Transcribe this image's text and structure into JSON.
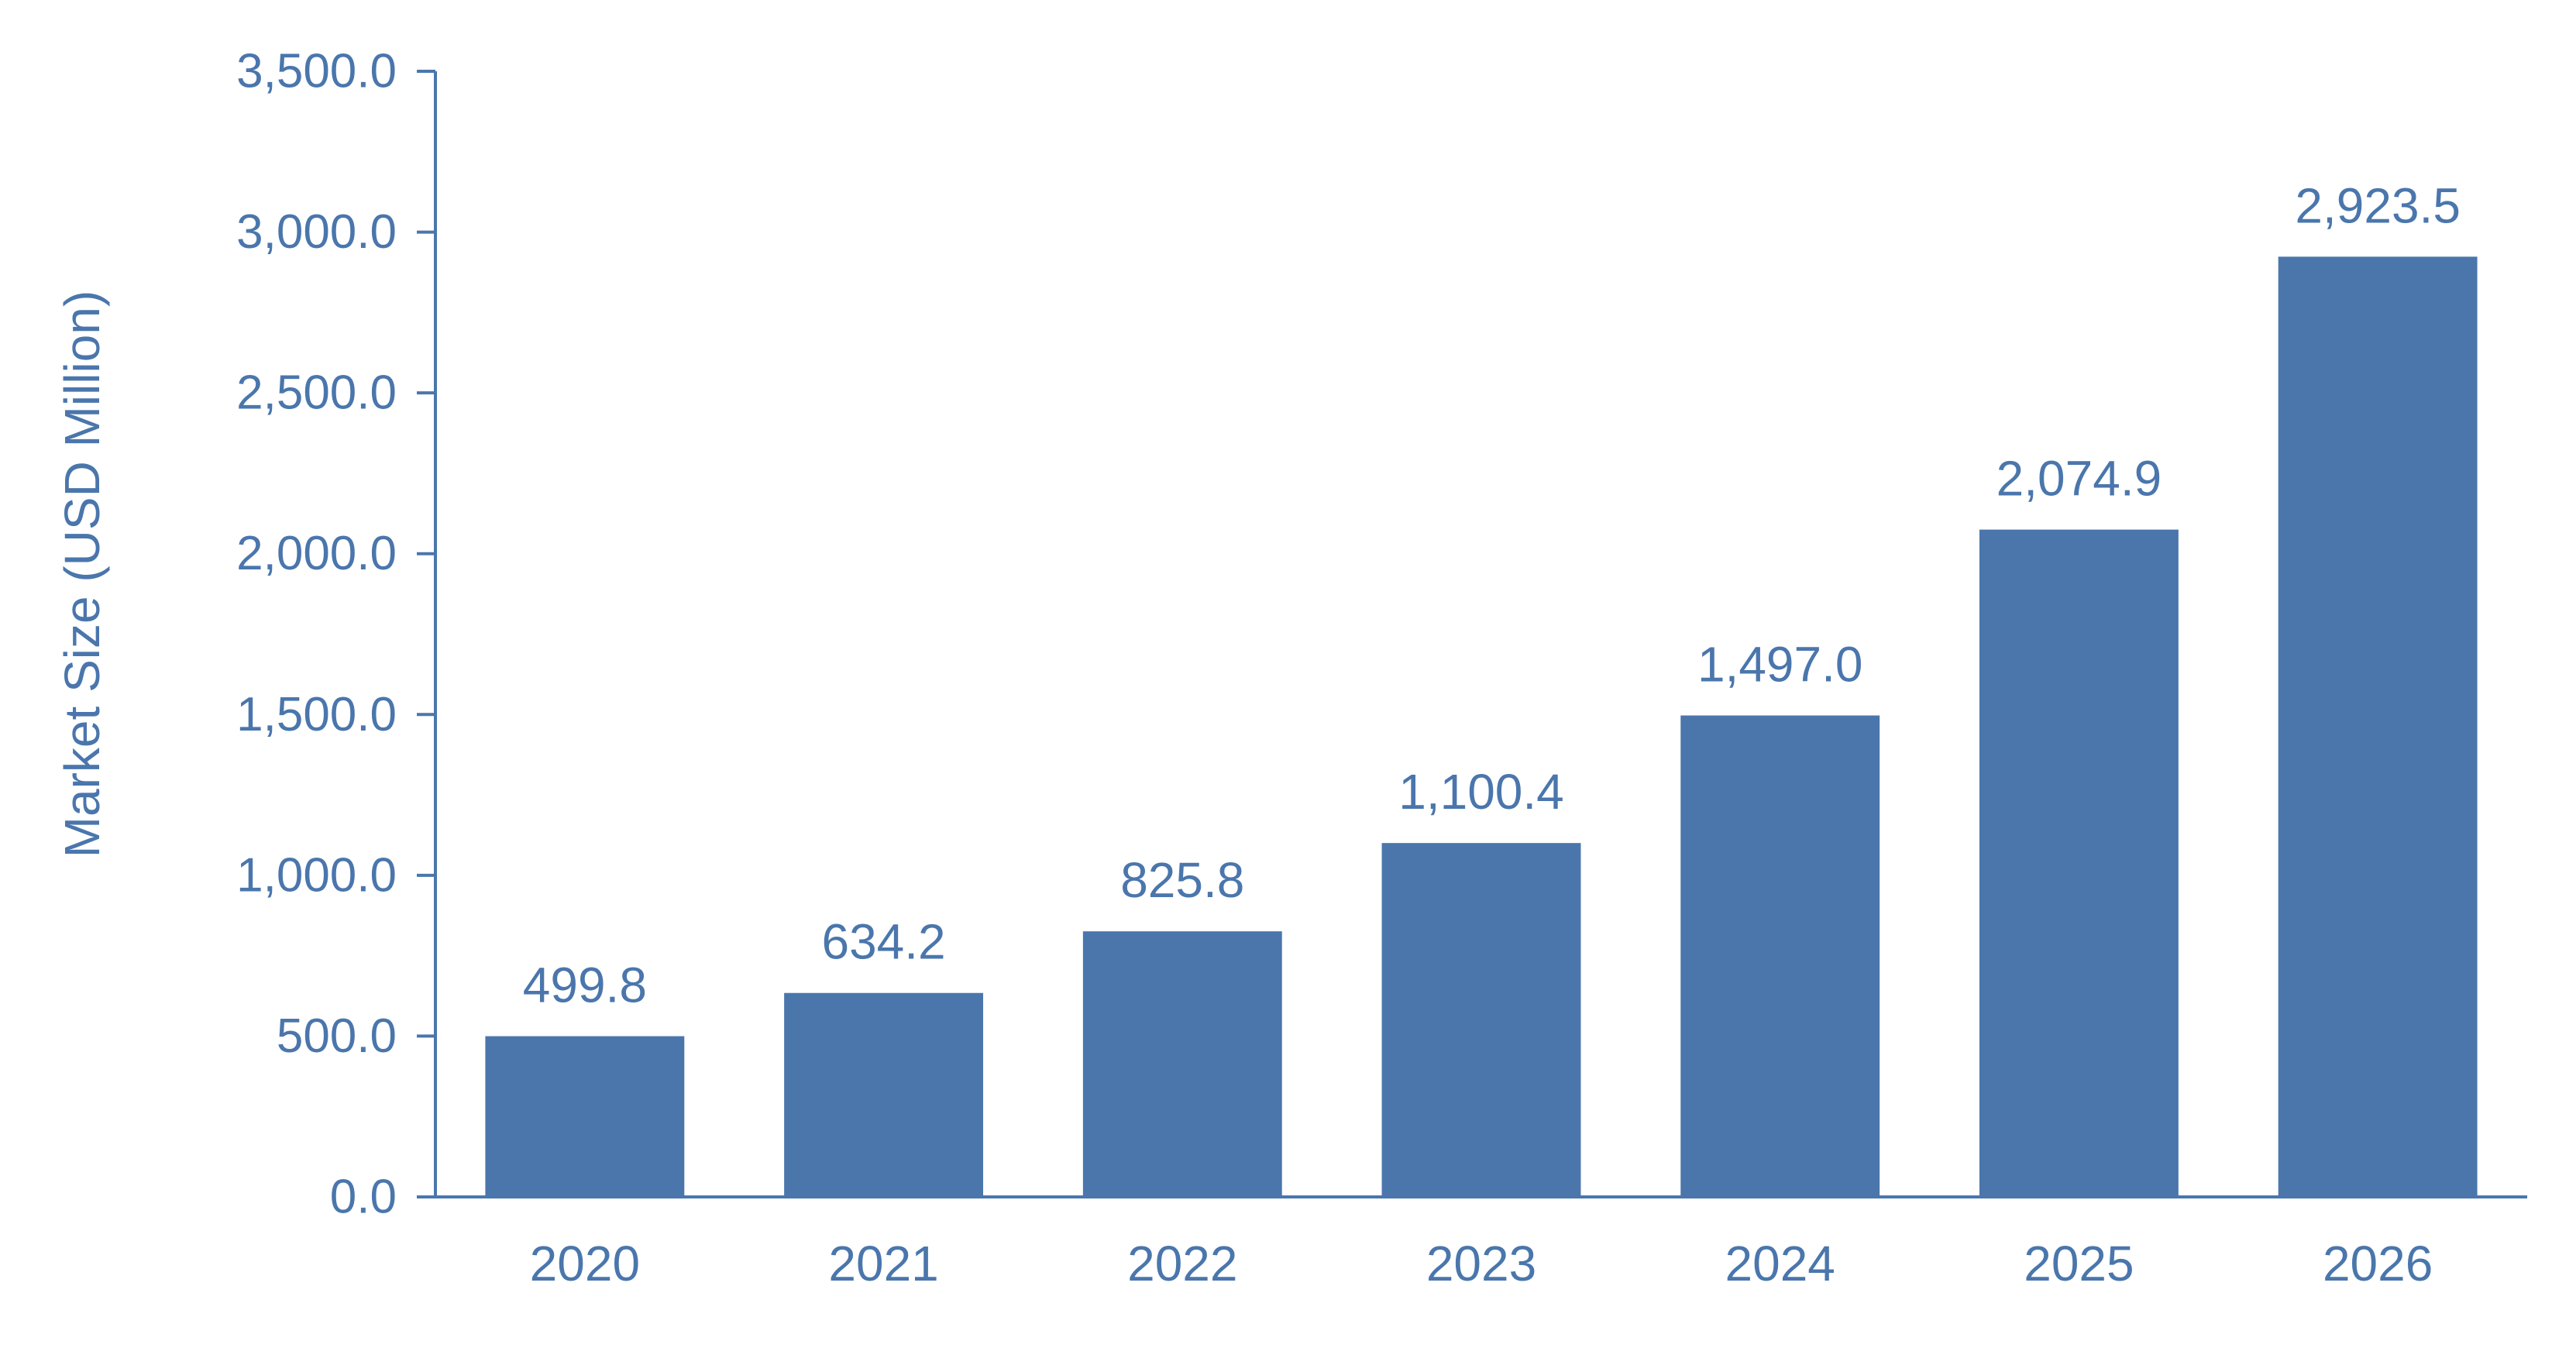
{
  "chart_data": {
    "type": "bar",
    "title": "",
    "xlabel": "",
    "ylabel": "Market Size (USD Million)",
    "categories": [
      "2020",
      "2021",
      "2022",
      "2023",
      "2024",
      "2025",
      "2026"
    ],
    "values": [
      499.8,
      634.2,
      825.8,
      1100.4,
      1497.0,
      2074.9,
      2923.5
    ],
    "value_labels": [
      "499.8",
      "634.2",
      "825.8",
      "1,100.4",
      "1,497.0",
      "2,074.9",
      "2,923.5"
    ],
    "ylim": [
      0,
      3500
    ],
    "yticks": [
      0,
      500,
      1000,
      1500,
      2000,
      2500,
      3000,
      3500
    ],
    "ytick_labels": [
      "0.0",
      "500.0",
      "1,000.0",
      "1,500.0",
      "2,000.0",
      "2,500.0",
      "3,000.0",
      "3,500.0"
    ],
    "grid": false,
    "legend": "none",
    "colors": {
      "bar": "#4A76AC",
      "axis": "#4A76AC",
      "text": "#4A76AC"
    }
  }
}
